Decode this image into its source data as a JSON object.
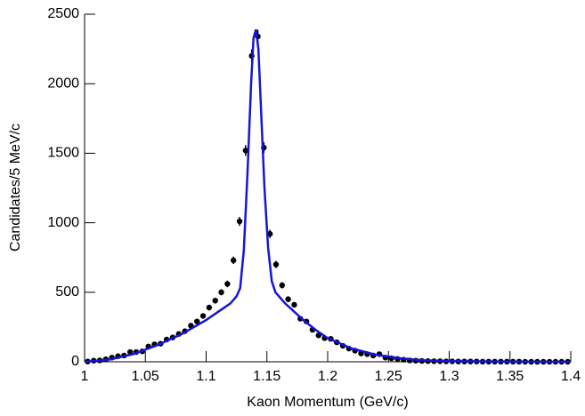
{
  "chart_data": {
    "type": "scatter",
    "x_label": "Kaon Momentum (GeV/c)",
    "y_label": "Candidates/5 MeV/c",
    "xlim": [
      1,
      1.4
    ],
    "xticks": [
      1,
      1.05,
      1.1,
      1.15,
      1.2,
      1.25,
      1.3,
      1.35,
      1.4
    ],
    "ylim": [
      0,
      2500
    ],
    "yticks": [
      0,
      500,
      1000,
      1500,
      2000,
      2500
    ],
    "points": {
      "color": "#000000",
      "x": [
        1.0025,
        1.0075,
        1.0125,
        1.0175,
        1.0225,
        1.0275,
        1.0325,
        1.0375,
        1.0425,
        1.0475,
        1.0525,
        1.0575,
        1.0625,
        1.0675,
        1.0725,
        1.0775,
        1.0825,
        1.0875,
        1.0925,
        1.0975,
        1.1025,
        1.1075,
        1.1125,
        1.1175,
        1.1225,
        1.1275,
        1.1325,
        1.1375,
        1.1425,
        1.1475,
        1.1525,
        1.1575,
        1.1625,
        1.1675,
        1.1725,
        1.1775,
        1.1825,
        1.1875,
        1.1925,
        1.1975,
        1.2025,
        1.2075,
        1.2125,
        1.2175,
        1.2225,
        1.2275,
        1.2325,
        1.2375,
        1.2425,
        1.2475,
        1.2525,
        1.2575,
        1.2625,
        1.2675,
        1.2725,
        1.2775,
        1.2825,
        1.2875,
        1.2925,
        1.2975,
        1.3025,
        1.3075,
        1.3125,
        1.3175,
        1.3225,
        1.3275,
        1.3325,
        1.3375,
        1.3425,
        1.3475,
        1.3525,
        1.3575,
        1.3625,
        1.3675,
        1.3725,
        1.3775,
        1.3825,
        1.3875,
        1.3925,
        1.3975
      ],
      "values": [
        2,
        8,
        10,
        18,
        30,
        40,
        45,
        70,
        70,
        75,
        110,
        125,
        130,
        160,
        175,
        200,
        220,
        260,
        290,
        330,
        390,
        440,
        500,
        560,
        730,
        1010,
        1520,
        2200,
        2340,
        1540,
        920,
        700,
        550,
        450,
        410,
        310,
        290,
        230,
        190,
        170,
        165,
        140,
        115,
        95,
        80,
        60,
        55,
        45,
        55,
        30,
        25,
        20,
        15,
        10,
        8,
        6,
        5,
        4,
        4,
        3,
        3,
        2,
        2,
        2,
        2,
        1,
        1,
        1,
        1,
        1,
        1,
        1,
        0,
        0,
        0,
        0,
        0,
        0,
        0,
        0
      ],
      "errors": [
        1,
        3,
        3,
        4,
        5,
        6,
        7,
        8,
        8,
        9,
        10,
        11,
        11,
        13,
        13,
        14,
        15,
        16,
        17,
        18,
        20,
        21,
        22,
        24,
        27,
        32,
        39,
        47,
        48,
        39,
        30,
        26,
        23,
        21,
        20,
        18,
        17,
        15,
        14,
        13,
        13,
        12,
        11,
        10,
        9,
        8,
        7,
        7,
        7,
        5,
        5,
        4,
        4,
        3,
        3,
        2,
        2,
        2,
        2,
        2,
        2,
        1,
        1,
        1,
        1,
        1,
        1,
        1,
        1,
        1,
        1,
        1,
        0,
        0,
        0,
        0,
        0,
        0,
        0,
        0
      ]
    },
    "fit": {
      "type": "line",
      "color": "#1515d8",
      "x": [
        1.0,
        1.02,
        1.04,
        1.06,
        1.08,
        1.1,
        1.11,
        1.12,
        1.125,
        1.128,
        1.131,
        1.134,
        1.137,
        1.139,
        1.141,
        1.143,
        1.145,
        1.148,
        1.151,
        1.154,
        1.157,
        1.16,
        1.165,
        1.17,
        1.18,
        1.19,
        1.2,
        1.22,
        1.24,
        1.26,
        1.28,
        1.3,
        1.35,
        1.4
      ],
      "values": [
        0,
        15,
        55,
        120,
        200,
        300,
        360,
        420,
        470,
        530,
        800,
        1350,
        2000,
        2330,
        2390,
        2250,
        1850,
        1250,
        820,
        580,
        500,
        470,
        420,
        380,
        300,
        230,
        170,
        95,
        50,
        25,
        10,
        5,
        1,
        0
      ]
    }
  }
}
